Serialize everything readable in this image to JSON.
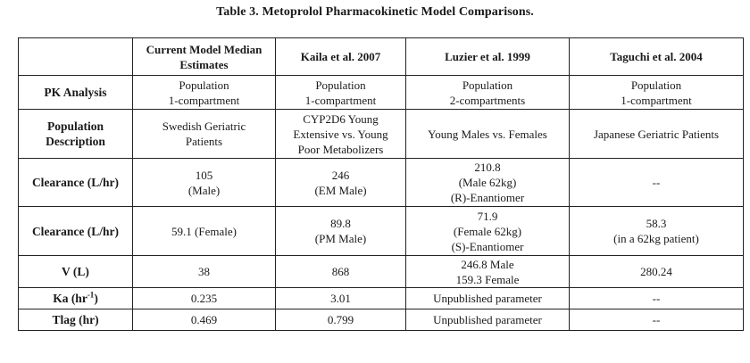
{
  "caption": "Table 3. Metoprolol Pharmacokinetic Model Comparisons.",
  "table": {
    "columns": [
      {
        "lines": [
          "",
          ""
        ]
      },
      {
        "lines": [
          "Current Model Median",
          "Estimates"
        ]
      },
      {
        "lines": [
          "Kaila et al. 2007"
        ]
      },
      {
        "lines": [
          "Luzier et al. 1999"
        ]
      },
      {
        "lines": [
          "Taguchi et al. 2004"
        ]
      }
    ],
    "rows": [
      {
        "label": [
          "PK Analysis"
        ],
        "cells": [
          [
            "Population",
            "1-compartment"
          ],
          [
            "Population",
            "1-compartment"
          ],
          [
            "Population",
            "2-compartments"
          ],
          [
            "Population",
            "1-compartment"
          ]
        ]
      },
      {
        "label": [
          "Population",
          "Description"
        ],
        "cells": [
          [
            "Swedish Geriatric",
            "Patients"
          ],
          [
            "CYP2D6 Young",
            "Extensive vs. Young",
            "Poor Metabolizers"
          ],
          [
            "Young Males vs. Females"
          ],
          [
            "Japanese Geriatric Patients"
          ]
        ]
      },
      {
        "label": [
          "Clearance (L/hr)"
        ],
        "cells": [
          [
            "105",
            "(Male)"
          ],
          [
            "246",
            "(EM Male)"
          ],
          [
            "210.8",
            "(Male 62kg)",
            "(R)-Enantiomer"
          ],
          [
            "--"
          ]
        ]
      },
      {
        "label": [
          "Clearance (L/hr)"
        ],
        "cells": [
          [
            "59.1 (Female)"
          ],
          [
            "89.8",
            "(PM Male)"
          ],
          [
            "71.9",
            "(Female 62kg)",
            "(S)-Enantiomer"
          ],
          [
            "58.3",
            "(in a 62kg patient)"
          ]
        ]
      },
      {
        "label": [
          "V (L)"
        ],
        "cells": [
          [
            "38"
          ],
          [
            "868"
          ],
          [
            "246.8 Male",
            "159.3 Female"
          ],
          [
            "280.24"
          ]
        ]
      },
      {
        "label_base": "Ka (hr",
        "label_sup": "-1",
        "label_end": ")",
        "cells": [
          [
            "0.235"
          ],
          [
            "3.01"
          ],
          [
            "Unpublished parameter"
          ],
          [
            "--"
          ]
        ]
      },
      {
        "label": [
          "Tlag (hr)"
        ],
        "cells": [
          [
            "0.469"
          ],
          [
            "0.799"
          ],
          [
            "Unpublished parameter"
          ],
          [
            "--"
          ]
        ]
      }
    ]
  }
}
